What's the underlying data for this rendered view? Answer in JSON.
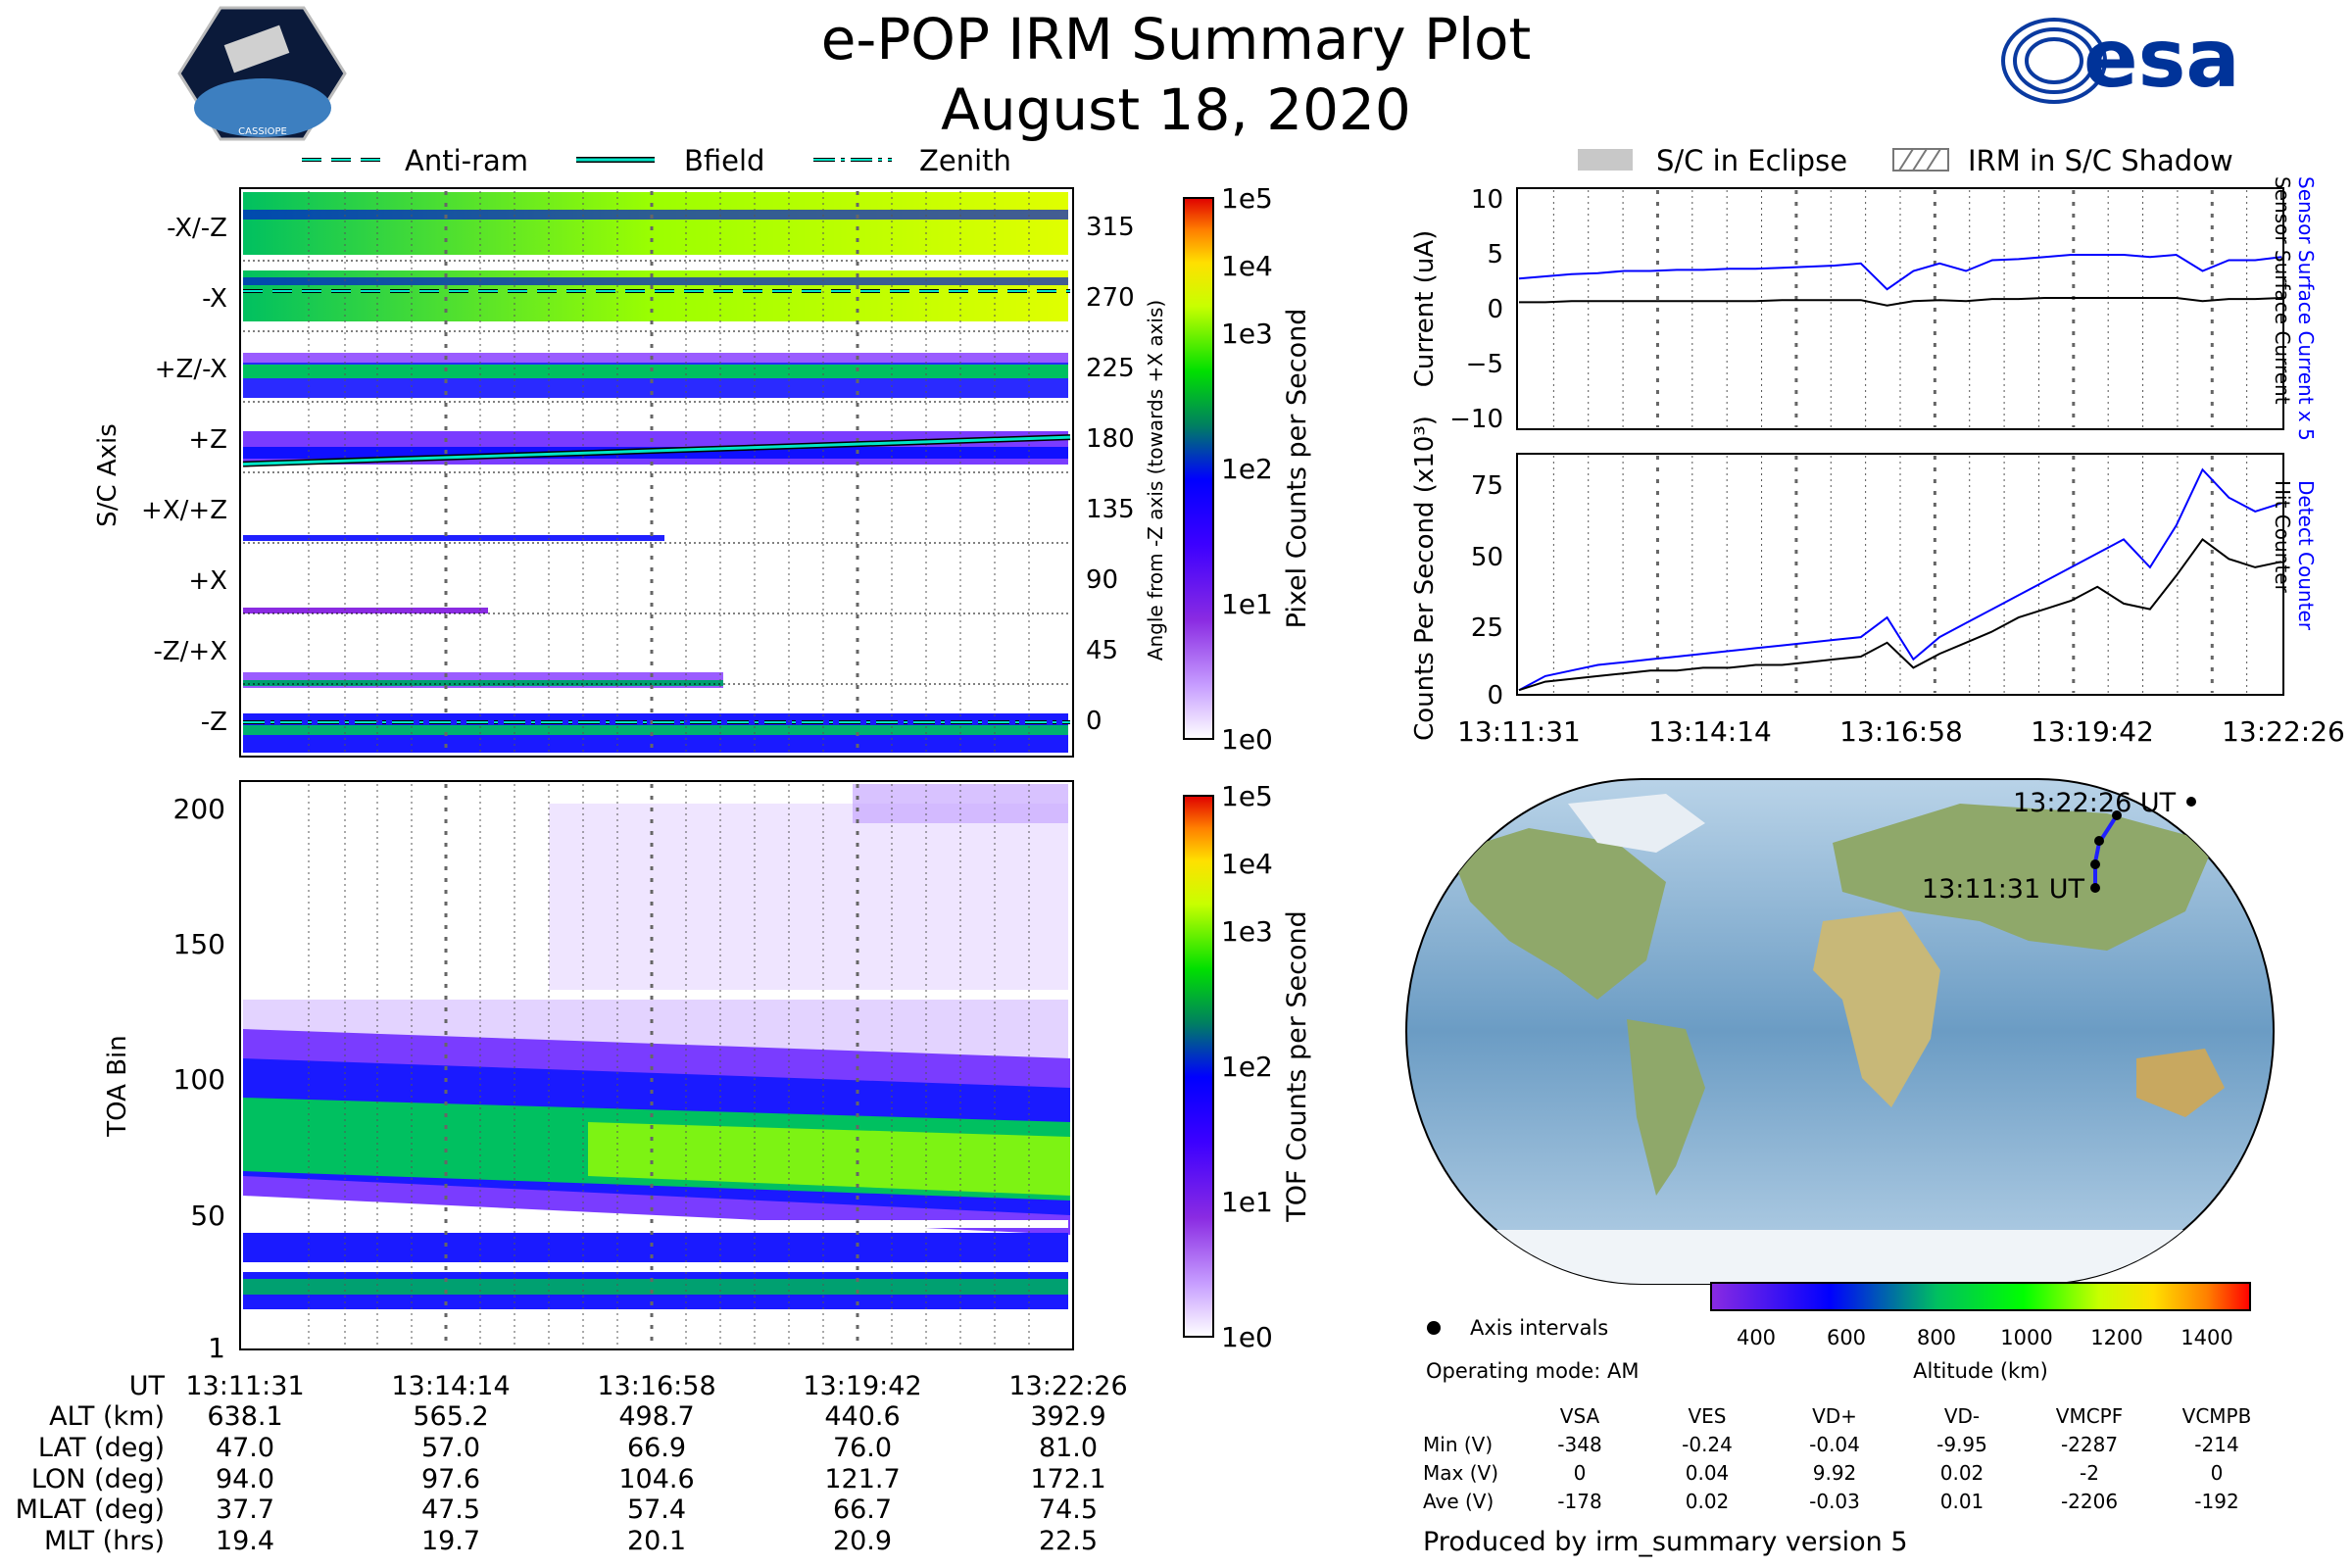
{
  "header": {
    "title": "e-POP IRM Summary Plot",
    "date": "August 18, 2020",
    "left_logo": "CASSIOPE mission patch",
    "left_logo_text": "CASSIOPE",
    "right_logo": "esa",
    "right_logo_text": "esa"
  },
  "colors": {
    "detect_counter": "#0000ff",
    "hit_counter": "#000000",
    "bfield": "#00e5c8",
    "eclipse": "#c8c8c8"
  },
  "top_legend": {
    "anti_ram": "Anti-ram",
    "bfield": "Bfield",
    "zenith": "Zenith"
  },
  "right_legend": {
    "eclipse": "S/C in Eclipse",
    "shadow": "IRM in S/C Shadow"
  },
  "chart_data": [
    {
      "id": "pixel_spectrogram",
      "type": "heatmap",
      "ylabel": "S/C Axis",
      "y2label": "Angle from -Z axis (towards +X axis)",
      "axis_labels": [
        "-X/-Z",
        "-X",
        "+Z/-X",
        "+Z",
        "+X/+Z",
        "+X",
        "-Z/+X",
        "-Z"
      ],
      "angle_ticks": [
        "315",
        "270",
        "225",
        "180",
        "135",
        "90",
        "45",
        "0"
      ],
      "colorbar_label": "Pixel Counts per Second",
      "colorbar_ticks": [
        "1e0",
        "1e1",
        "1e2",
        "1e3",
        "1e4",
        "1e5"
      ],
      "bfield_angle_start": 163,
      "bfield_angle_end": 180
    },
    {
      "id": "tof_spectrogram",
      "type": "heatmap",
      "ylabel": "TOA Bin",
      "yticks": [
        "1",
        "50",
        "100",
        "150",
        "200"
      ],
      "colorbar_label": "TOF Counts per Second",
      "colorbar_ticks": [
        "1e0",
        "1e1",
        "1e2",
        "1e3",
        "1e4",
        "1e5"
      ]
    },
    {
      "id": "current",
      "type": "line",
      "ylabel": "Current (uA)",
      "yticks": [
        "10",
        "5",
        "0",
        "−5",
        "−10"
      ],
      "ylim": [
        -11,
        11
      ],
      "series": [
        {
          "name": "Sensor Surface Current x 5",
          "color": "#0000ff",
          "values": [
            2.8,
            3.0,
            3.2,
            3.3,
            3.5,
            3.5,
            3.6,
            3.6,
            3.7,
            3.7,
            3.8,
            3.9,
            4.0,
            4.2,
            1.8,
            3.5,
            4.2,
            3.5,
            4.5,
            4.6,
            4.8,
            5.0,
            5.0,
            5.0,
            4.8,
            5.0,
            3.5,
            4.5,
            4.5,
            4.8
          ]
        },
        {
          "name": "Sensor Surface Current",
          "color": "#000000",
          "values": [
            0.6,
            0.6,
            0.7,
            0.7,
            0.7,
            0.7,
            0.7,
            0.7,
            0.7,
            0.7,
            0.8,
            0.8,
            0.8,
            0.8,
            0.3,
            0.7,
            0.8,
            0.7,
            0.9,
            0.9,
            1.0,
            1.0,
            1.0,
            1.0,
            1.0,
            1.0,
            0.7,
            0.9,
            0.9,
            1.0
          ]
        }
      ]
    },
    {
      "id": "counts",
      "type": "line",
      "ylabel": "Counts Per Second (x10³)",
      "yticks": [
        "75",
        "50",
        "25",
        "0"
      ],
      "ylim": [
        0,
        85
      ],
      "xticks": [
        "13:11:31",
        "13:14:14",
        "13:16:58",
        "13:19:42",
        "13:22:26"
      ],
      "series": [
        {
          "name": "Detect Counter",
          "color": "#0000ff",
          "values": [
            1,
            6,
            8,
            10,
            11,
            12,
            13,
            14,
            15,
            16,
            17,
            18,
            19,
            20,
            27,
            12,
            20,
            25,
            30,
            35,
            40,
            45,
            50,
            55,
            45,
            60,
            80,
            70,
            65,
            68
          ]
        },
        {
          "name": "Hit Counter",
          "color": "#000000",
          "values": [
            1,
            4,
            5,
            6,
            7,
            8,
            8,
            9,
            9,
            10,
            10,
            11,
            12,
            13,
            18,
            9,
            14,
            18,
            22,
            27,
            30,
            33,
            38,
            32,
            30,
            42,
            55,
            48,
            45,
            47
          ]
        }
      ]
    }
  ],
  "time_table": {
    "row_labels": [
      "UT",
      "ALT (km)",
      "LAT (deg)",
      "LON (deg)",
      "MLAT (deg)",
      "MLT (hrs)"
    ],
    "columns": [
      [
        "13:11:31",
        "638.1",
        "47.0",
        "94.0",
        "37.7",
        "19.4"
      ],
      [
        "13:14:14",
        "565.2",
        "57.0",
        "97.6",
        "47.5",
        "19.7"
      ],
      [
        "13:16:58",
        "498.7",
        "66.9",
        "104.6",
        "57.4",
        "20.1"
      ],
      [
        "13:19:42",
        "440.6",
        "76.0",
        "121.7",
        "66.7",
        "20.9"
      ],
      [
        "13:22:26",
        "392.9",
        "81.0",
        "172.1",
        "74.5",
        "22.5"
      ]
    ]
  },
  "map": {
    "start_label": "13:11:31 UT",
    "end_label": "13:22:26 UT",
    "altitude_label": "Altitude (km)",
    "altitude_ticks": [
      "400",
      "600",
      "800",
      "1000",
      "1200",
      "1400"
    ],
    "axis_intervals_label": "Axis intervals",
    "operating_mode": "Operating mode: AM"
  },
  "voltage_table": {
    "headers": [
      "VSA",
      "VES",
      "VD+",
      "VD-",
      "VMCPF",
      "VCMPB"
    ],
    "rows": [
      {
        "label": "Min (V)",
        "values": [
          "-348",
          "-0.24",
          "-0.04",
          "-9.95",
          "-2287",
          "-214"
        ]
      },
      {
        "label": "Max (V)",
        "values": [
          "0",
          "0.04",
          "9.92",
          "0.02",
          "-2",
          "0"
        ]
      },
      {
        "label": "Ave (V)",
        "values": [
          "-178",
          "0.02",
          "-0.03",
          "0.01",
          "-2206",
          "-192"
        ]
      }
    ]
  },
  "footer": "Produced by irm_summary version 5"
}
